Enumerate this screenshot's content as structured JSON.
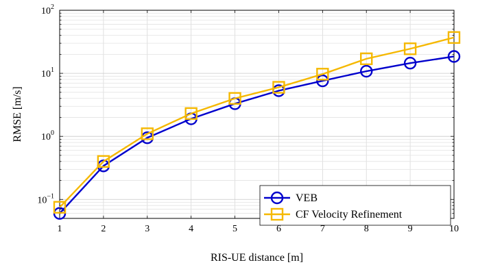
{
  "chart_data": {
    "type": "line",
    "title": "",
    "xlabel": "RIS-UE distance [m]",
    "ylabel": "RMSE  [m/s]",
    "x": [
      1,
      2,
      3,
      4,
      5,
      6,
      7,
      8,
      9,
      10
    ],
    "xlim": [
      1,
      10
    ],
    "ylim": [
      0.05,
      100
    ],
    "yscale": "log",
    "y_major_ticks": [
      {
        "value": 0.1,
        "base": "10",
        "exp": "−1"
      },
      {
        "value": 1,
        "base": "10",
        "exp": "0"
      },
      {
        "value": 10,
        "base": "10",
        "exp": "1"
      },
      {
        "value": 100,
        "base": "10",
        "exp": "2"
      }
    ],
    "grid": true,
    "legend_position": "bottom-right",
    "series": [
      {
        "name": "VEB",
        "color": "#0000cc",
        "marker": "circle",
        "values": [
          0.06,
          0.34,
          0.95,
          1.9,
          3.3,
          5.3,
          7.6,
          10.8,
          14.5,
          18.5
        ]
      },
      {
        "name": "CF Velocity Refinement",
        "color": "#f5b800",
        "marker": "square",
        "values": [
          0.075,
          0.4,
          1.1,
          2.3,
          4.0,
          6.0,
          9.7,
          17.0,
          24.5,
          37.0
        ]
      }
    ]
  }
}
